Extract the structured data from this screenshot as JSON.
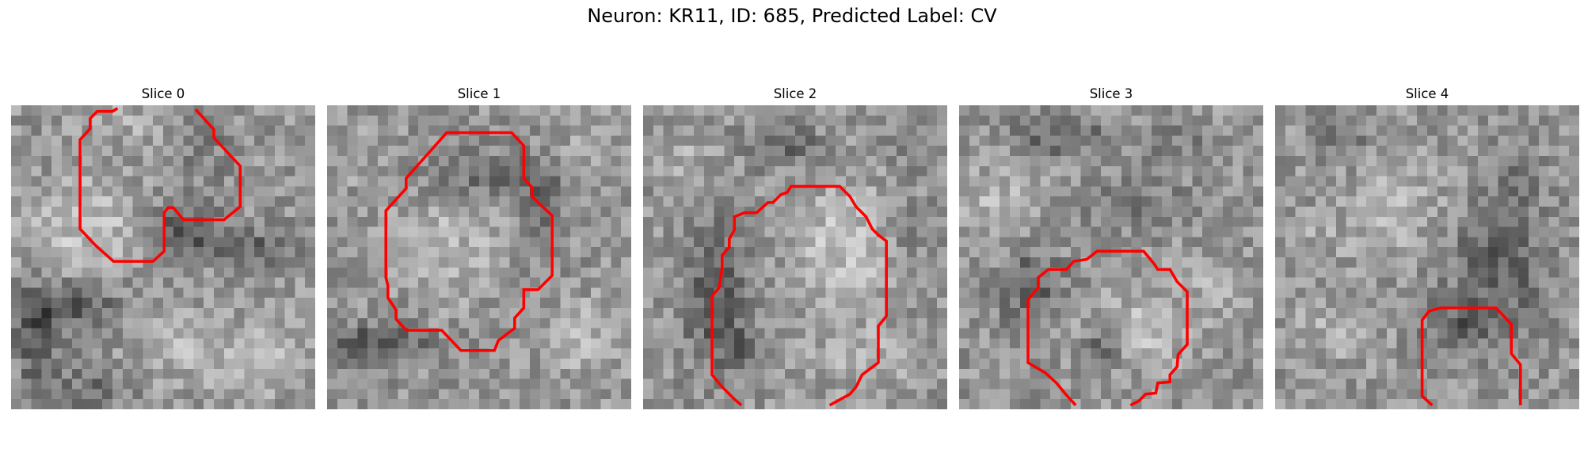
{
  "figure": {
    "title": "Neuron: KR11, ID: 685, Predicted Label: CV"
  },
  "colors": {
    "contour": "#ff0000",
    "colormap": "grayscale"
  },
  "slices": [
    {
      "title": "Slice 0"
    },
    {
      "title": "Slice 1"
    },
    {
      "title": "Slice 2"
    },
    {
      "title": "Slice 3"
    },
    {
      "title": "Slice 4"
    }
  ]
}
